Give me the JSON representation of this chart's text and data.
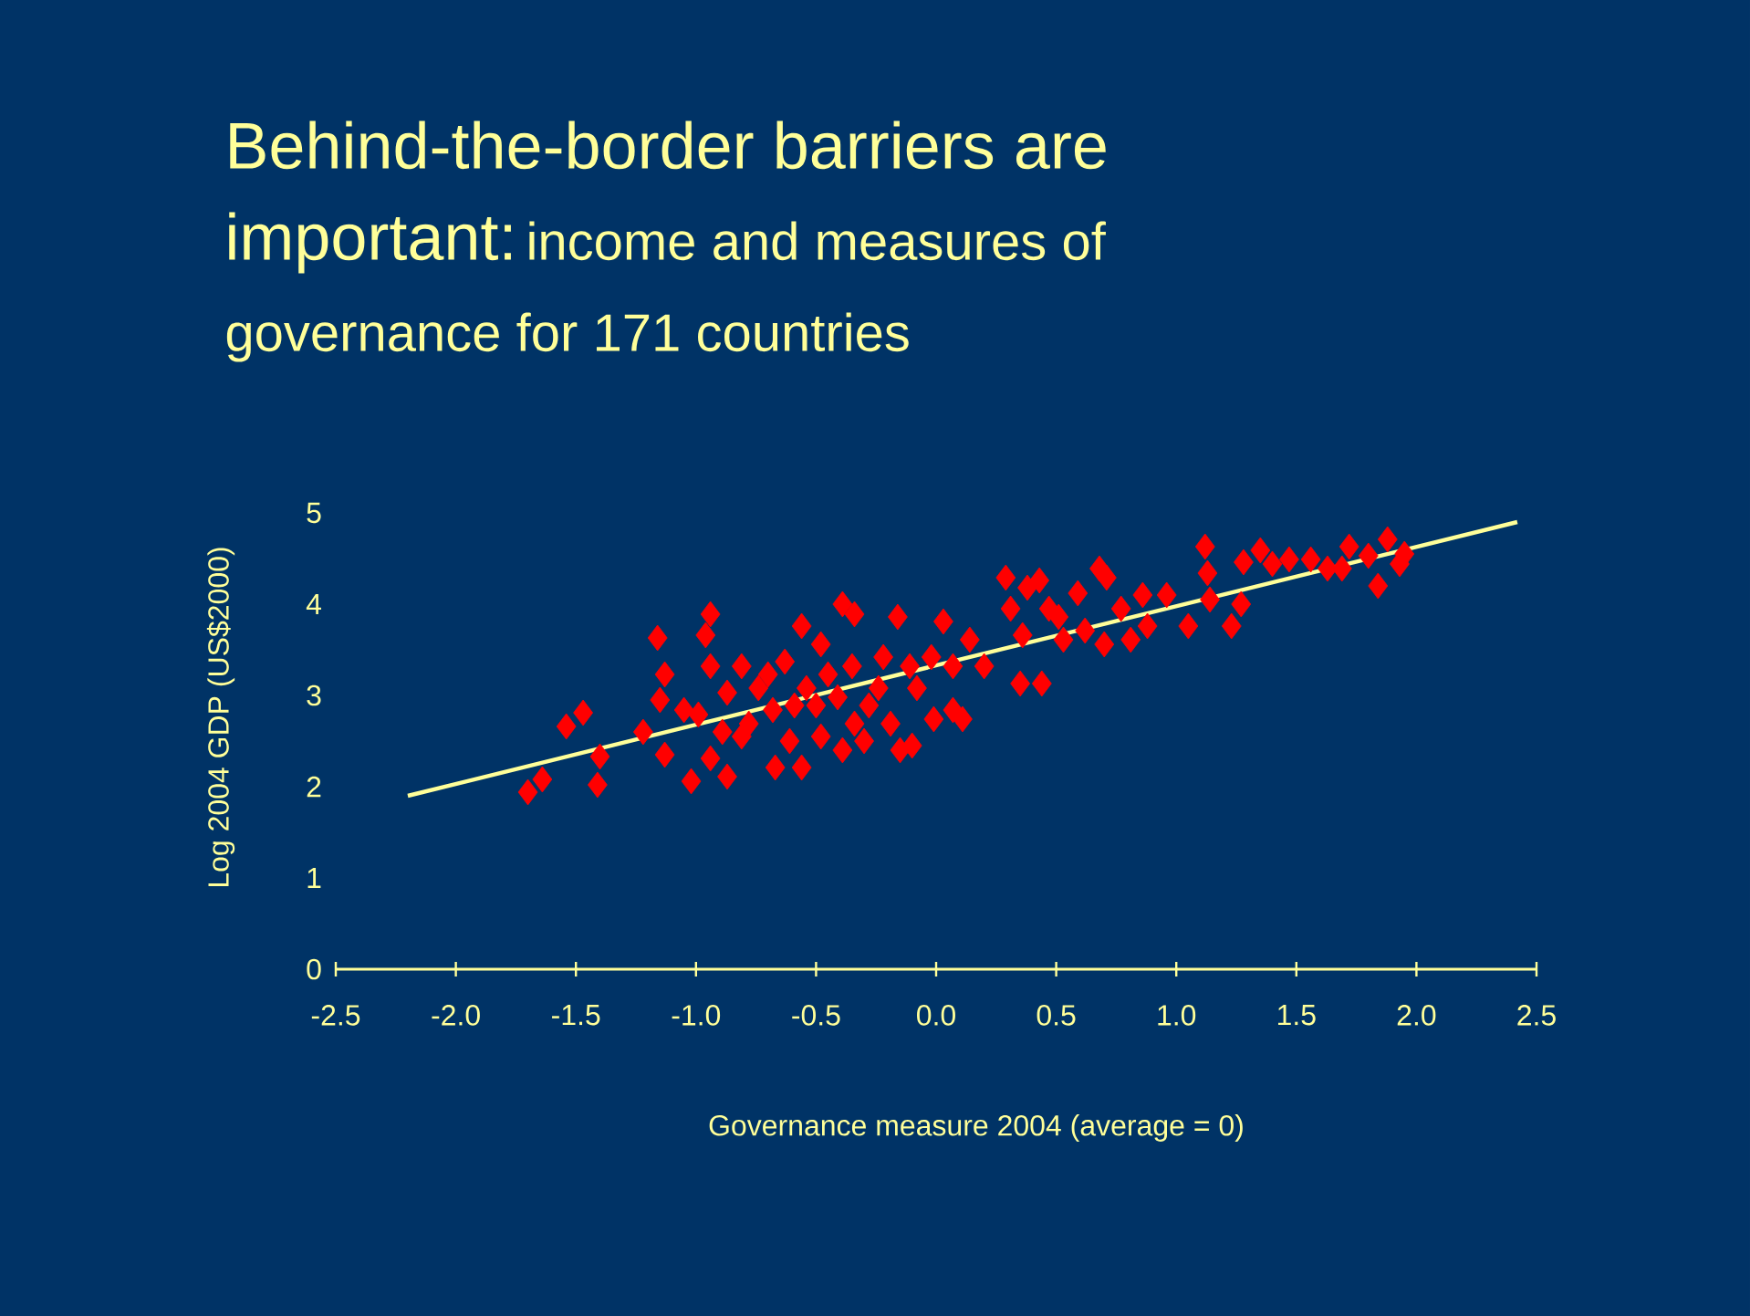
{
  "chart_data": {
    "type": "scatter",
    "title": "Behind-the-border barriers are important:",
    "subtitle": "income and measures of governance for 171 countries",
    "xlabel": "Governance measure 2004 (average = 0)",
    "ylabel": "Log 2004 GDP (US$2000)",
    "xlim": [
      -2.5,
      2.5
    ],
    "ylim": [
      0,
      5
    ],
    "xticks": [
      {
        "value": -2.5,
        "label": "-2.5"
      },
      {
        "value": -2,
        "label": "-2.0"
      },
      {
        "value": -1.5,
        "label": "-1.5"
      },
      {
        "value": -1,
        "label": "-1.0"
      },
      {
        "value": -0.5,
        "label": "-0.5"
      },
      {
        "value": 0,
        "label": "0.0"
      },
      {
        "value": 0.5,
        "label": "0.5"
      },
      {
        "value": 1,
        "label": "1.0"
      },
      {
        "value": 1.5,
        "label": "1.5"
      },
      {
        "value": 2,
        "label": "2.0"
      },
      {
        "value": 2.5,
        "label": "2.5"
      }
    ],
    "yticks": [
      0,
      1,
      2,
      3,
      4,
      5
    ],
    "grid": false,
    "series": [
      {
        "color": "#ff0000",
        "marker": "diamond",
        "x": [
          -1.7,
          -1.64,
          -1.54,
          -1.47,
          -1.41,
          -1.4,
          -1.22,
          -1.16,
          -1.15,
          -1.13,
          -1.13,
          -1.02,
          -0.99,
          -0.96,
          -0.94,
          -0.94,
          -0.94,
          -0.87,
          -0.87,
          -0.81,
          -0.81,
          -0.74,
          -0.68,
          -0.67,
          -0.63,
          -0.61,
          -0.56,
          -0.56,
          -0.54,
          -0.48,
          -0.48,
          -0.45,
          -0.39,
          -0.39,
          -0.34,
          -0.35,
          -0.3,
          -0.28,
          -0.22,
          -0.19,
          -0.16,
          -0.15,
          -0.1,
          -0.08,
          -0.02,
          -0.01,
          0.03,
          0.07,
          0.11,
          0.14,
          0.2,
          0.29,
          0.31,
          0.35,
          0.36,
          0.38,
          0.43,
          0.44,
          0.47,
          0.53,
          0.59,
          0.68,
          0.7,
          0.71,
          0.77,
          0.81,
          0.88,
          0.96,
          1.05,
          1.12,
          1.13,
          1.14,
          1.23,
          1.27,
          1.28,
          1.35,
          1.4,
          1.47,
          1.56,
          1.63,
          1.69,
          1.72,
          1.8,
          1.84,
          1.88,
          1.93,
          1.95,
          -1.05,
          -0.89,
          -0.78,
          -0.7,
          -0.59,
          -0.5,
          -0.41,
          -0.34,
          -0.24,
          -0.11,
          0.07,
          0.51,
          0.62,
          0.86
        ],
        "values": [
          1.94,
          2.08,
          2.66,
          2.81,
          2.02,
          2.33,
          2.6,
          3.63,
          2.95,
          3.23,
          2.35,
          2.06,
          2.79,
          3.66,
          3.89,
          3.32,
          2.31,
          2.11,
          3.03,
          3.32,
          2.55,
          3.08,
          2.84,
          2.21,
          3.37,
          2.5,
          3.76,
          2.21,
          3.08,
          3.56,
          2.55,
          3.23,
          2.4,
          4.0,
          3.89,
          3.32,
          2.5,
          2.89,
          3.42,
          2.69,
          3.86,
          2.4,
          2.45,
          3.08,
          3.42,
          2.74,
          3.81,
          2.84,
          2.74,
          3.61,
          3.32,
          4.29,
          3.95,
          3.13,
          3.66,
          4.18,
          4.26,
          3.13,
          3.95,
          3.61,
          4.12,
          4.39,
          3.56,
          4.29,
          3.95,
          3.61,
          3.76,
          4.1,
          3.76,
          4.63,
          4.34,
          4.05,
          3.76,
          4.0,
          4.46,
          4.59,
          4.44,
          4.49,
          4.49,
          4.39,
          4.39,
          4.63,
          4.53,
          4.2,
          4.71,
          4.44,
          4.55,
          2.84,
          2.6,
          2.69,
          3.23,
          2.89,
          2.89,
          2.98,
          2.69,
          3.08,
          3.32,
          3.32,
          3.86,
          3.71,
          4.1
        ]
      },
      {
        "type": "line",
        "color": "#ffff99",
        "marker": "none",
        "line_style": "solid",
        "x": [
          -2.2,
          2.42
        ],
        "values": [
          1.9,
          4.9
        ]
      }
    ]
  }
}
